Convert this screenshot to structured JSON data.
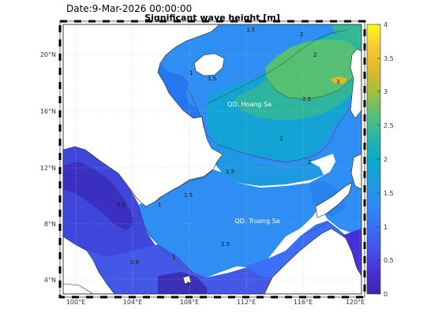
{
  "header": {
    "date_label": "Date:9-Mar-2026 00:00:00",
    "title": "Significant wave height [m]"
  },
  "map": {
    "lon_ticks": [
      "100°E",
      "104°E",
      "108°E",
      "112°E",
      "116°E",
      "120°E"
    ],
    "lat_ticks": [
      "4°N",
      "8°N",
      "12°N",
      "16°N",
      "20°N"
    ],
    "lon_range": [
      99.2,
      120.3
    ],
    "lat_range": [
      3.2,
      22.2
    ],
    "place_labels": [
      "QD. Hoang Sa",
      "QD. Truong Sa"
    ],
    "contour_labels": [
      "1.5",
      "2",
      "2.5",
      "3",
      "0.5",
      "1",
      "1.5",
      "2",
      "1.5",
      "2",
      "2",
      "1.5",
      "1",
      "1.5",
      "1",
      "0.5",
      "1"
    ],
    "land_color": "#ffffff"
  },
  "colorbar": {
    "ticks": [
      "0",
      "0.5",
      "1",
      "1.5",
      "2",
      "2.5",
      "3",
      "3.5",
      "4"
    ],
    "range": [
      0,
      4
    ],
    "colors": [
      "#3e26a8",
      "#4743ce",
      "#4560e8",
      "#2e81f6",
      "#1c9ce4",
      "#06a9c8",
      "#20b6aa",
      "#4ec16f",
      "#a6c02f",
      "#e6b92a",
      "#fcdc30",
      "#f9fb15"
    ]
  }
}
